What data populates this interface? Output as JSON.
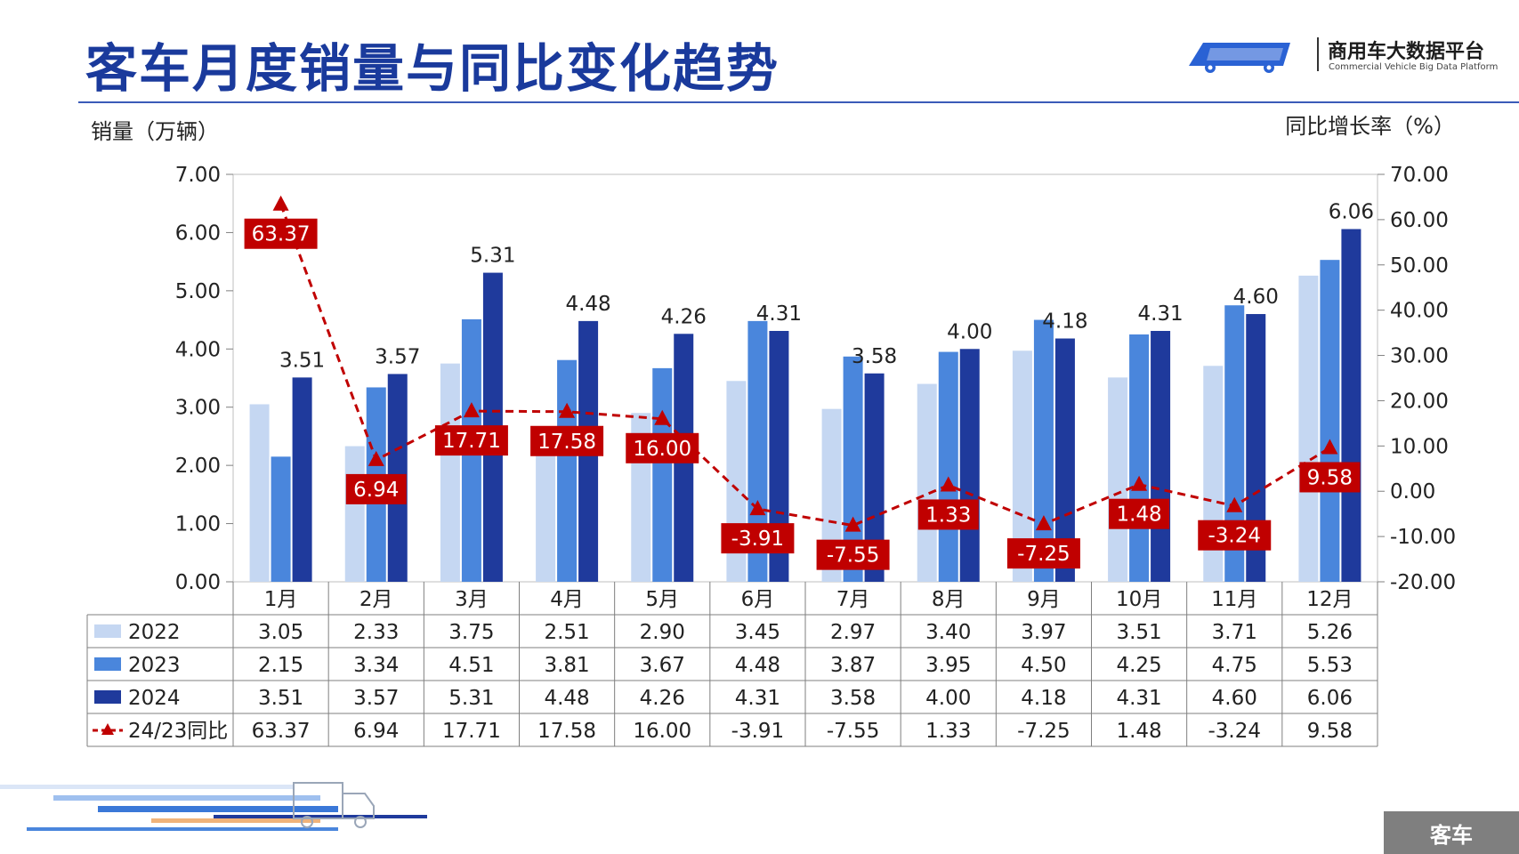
{
  "page": {
    "title": "客车月度销量与同比变化趋势",
    "brand_name": "商用车大数据平台",
    "brand_sub": "Commercial Vehicle Big Data Platform",
    "footer_tag": "客车",
    "accent_color": "#1a3a9c"
  },
  "chart_data": {
    "type": "bar",
    "ylabel": "销量（万辆）",
    "y2label": "同比增长率（%）",
    "ylim": [
      0,
      7
    ],
    "y2lim": [
      -20,
      70
    ],
    "yticks": [
      "0.00",
      "1.00",
      "2.00",
      "3.00",
      "4.00",
      "5.00",
      "6.00",
      "7.00"
    ],
    "y2ticks": [
      "-20.00",
      "-10.00",
      "0.00",
      "10.00",
      "20.00",
      "30.00",
      "40.00",
      "50.00",
      "60.00",
      "70.00"
    ],
    "categories": [
      "1月",
      "2月",
      "3月",
      "4月",
      "5月",
      "6月",
      "7月",
      "8月",
      "9月",
      "10月",
      "11月",
      "12月"
    ],
    "series": [
      {
        "name": "2022",
        "color": "#c5d7f2",
        "values": [
          3.05,
          2.33,
          3.75,
          2.51,
          2.9,
          3.45,
          2.97,
          3.4,
          3.97,
          3.51,
          3.71,
          5.26
        ]
      },
      {
        "name": "2023",
        "color": "#4a86dc",
        "values": [
          2.15,
          3.34,
          4.51,
          3.81,
          3.67,
          4.48,
          3.87,
          3.95,
          4.5,
          4.25,
          4.75,
          5.53
        ]
      },
      {
        "name": "2024",
        "color": "#1f3a9c",
        "values": [
          3.51,
          3.57,
          5.31,
          4.48,
          4.26,
          4.31,
          3.58,
          4.0,
          4.18,
          4.31,
          4.6,
          6.06
        ]
      }
    ],
    "line": {
      "name": "24/23同比",
      "color": "#c00000",
      "axis": "right",
      "marker": "triangle",
      "style": "dashed",
      "values": [
        63.37,
        6.94,
        17.71,
        17.58,
        16.0,
        -3.91,
        -7.55,
        1.33,
        -7.25,
        1.48,
        -3.24,
        9.58
      ]
    },
    "bar_labels_series": "2024",
    "table": {
      "rows": [
        {
          "label": "2022",
          "values": [
            "3.05",
            "2.33",
            "3.75",
            "2.51",
            "2.90",
            "3.45",
            "2.97",
            "3.40",
            "3.97",
            "3.51",
            "3.71",
            "5.26"
          ]
        },
        {
          "label": "2023",
          "values": [
            "2.15",
            "3.34",
            "4.51",
            "3.81",
            "3.67",
            "4.48",
            "3.87",
            "3.95",
            "4.50",
            "4.25",
            "4.75",
            "5.53"
          ]
        },
        {
          "label": "2024",
          "values": [
            "3.51",
            "3.57",
            "5.31",
            "4.48",
            "4.26",
            "4.31",
            "3.58",
            "4.00",
            "4.18",
            "4.31",
            "4.60",
            "6.06"
          ]
        },
        {
          "label": "24/23同比",
          "values": [
            "63.37",
            "6.94",
            "17.71",
            "17.58",
            "16.00",
            "-3.91",
            "-7.55",
            "1.33",
            "-7.25",
            "1.48",
            "-3.24",
            "9.58"
          ]
        }
      ]
    }
  }
}
